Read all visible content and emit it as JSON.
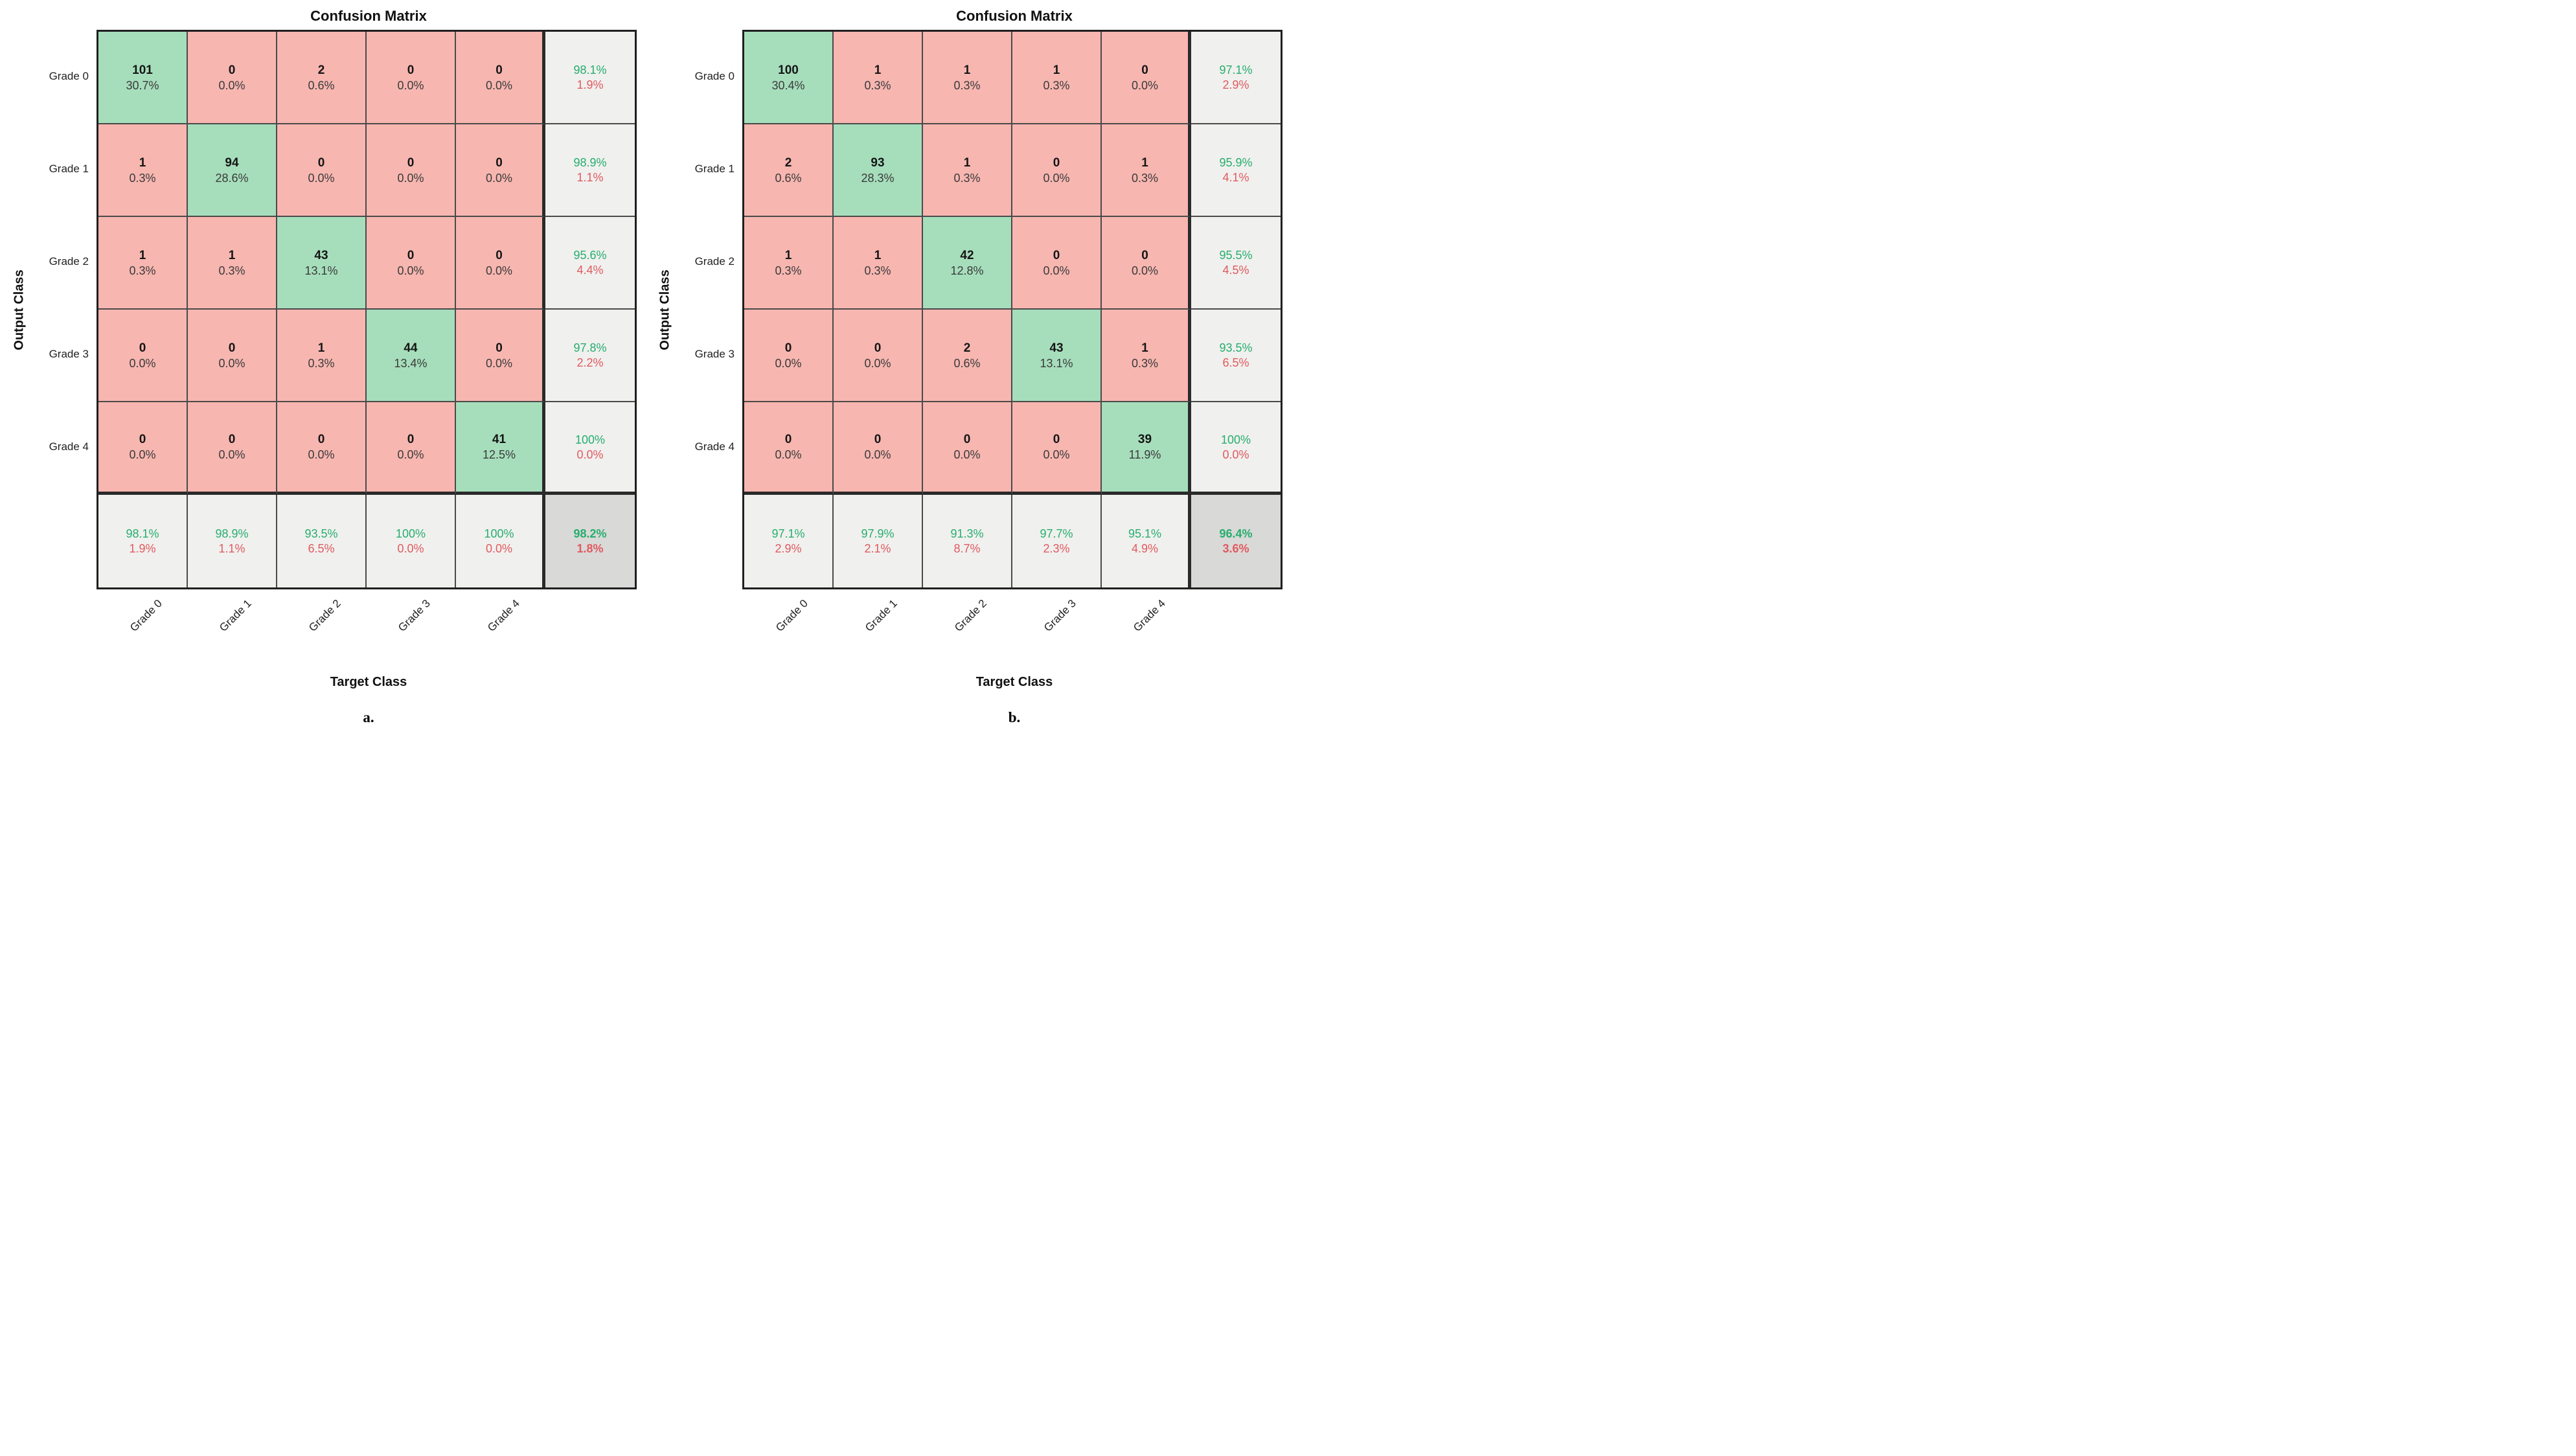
{
  "chart_data": [
    {
      "type": "heatmap",
      "panel_label": "a.",
      "title": "Confusion Matrix",
      "xlabel": "Target Class",
      "ylabel": "Output Class",
      "x_categories": [
        "Grade 0",
        "Grade 1",
        "Grade 2",
        "Grade 3",
        "Grade 4"
      ],
      "y_categories": [
        "Grade 0",
        "Grade 1",
        "Grade 2",
        "Grade 3",
        "Grade 4"
      ],
      "counts": [
        [
          101,
          0,
          2,
          0,
          0
        ],
        [
          1,
          94,
          0,
          0,
          0
        ],
        [
          1,
          1,
          43,
          0,
          0
        ],
        [
          0,
          0,
          1,
          44,
          0
        ],
        [
          0,
          0,
          0,
          0,
          41
        ]
      ],
      "percent_of_total": [
        [
          "30.7%",
          "0.0%",
          "0.6%",
          "0.0%",
          "0.0%"
        ],
        [
          "0.3%",
          "28.6%",
          "0.0%",
          "0.0%",
          "0.0%"
        ],
        [
          "0.3%",
          "0.3%",
          "13.1%",
          "0.0%",
          "0.0%"
        ],
        [
          "0.0%",
          "0.0%",
          "0.3%",
          "13.4%",
          "0.0%"
        ],
        [
          "0.0%",
          "0.0%",
          "0.0%",
          "0.0%",
          "12.5%"
        ]
      ],
      "row_summary_green": [
        "98.1%",
        "98.9%",
        "95.6%",
        "97.8%",
        "100%"
      ],
      "row_summary_red": [
        "1.9%",
        "1.1%",
        "4.4%",
        "2.2%",
        "0.0%"
      ],
      "col_summary_green": [
        "98.1%",
        "98.9%",
        "93.5%",
        "100%",
        "100%"
      ],
      "col_summary_red": [
        "1.9%",
        "1.1%",
        "6.5%",
        "0.0%",
        "0.0%"
      ],
      "overall_green": "98.2%",
      "overall_red": "1.8%"
    },
    {
      "type": "heatmap",
      "panel_label": "b.",
      "title": "Confusion Matrix",
      "xlabel": "Target Class",
      "ylabel": "Output Class",
      "x_categories": [
        "Grade 0",
        "Grade 1",
        "Grade 2",
        "Grade 3",
        "Grade 4"
      ],
      "y_categories": [
        "Grade 0",
        "Grade 1",
        "Grade 2",
        "Grade 3",
        "Grade 4"
      ],
      "counts": [
        [
          100,
          1,
          1,
          1,
          0
        ],
        [
          2,
          93,
          1,
          0,
          1
        ],
        [
          1,
          1,
          42,
          0,
          0
        ],
        [
          0,
          0,
          2,
          43,
          1
        ],
        [
          0,
          0,
          0,
          0,
          39
        ]
      ],
      "percent_of_total": [
        [
          "30.4%",
          "0.3%",
          "0.3%",
          "0.3%",
          "0.0%"
        ],
        [
          "0.6%",
          "28.3%",
          "0.3%",
          "0.0%",
          "0.3%"
        ],
        [
          "0.3%",
          "0.3%",
          "12.8%",
          "0.0%",
          "0.0%"
        ],
        [
          "0.0%",
          "0.0%",
          "0.6%",
          "13.1%",
          "0.3%"
        ],
        [
          "0.0%",
          "0.0%",
          "0.0%",
          "0.0%",
          "11.9%"
        ]
      ],
      "row_summary_green": [
        "97.1%",
        "95.9%",
        "95.5%",
        "93.5%",
        "100%"
      ],
      "row_summary_red": [
        "2.9%",
        "4.1%",
        "4.5%",
        "6.5%",
        "0.0%"
      ],
      "col_summary_green": [
        "97.1%",
        "97.9%",
        "91.3%",
        "97.7%",
        "95.1%"
      ],
      "col_summary_red": [
        "2.9%",
        "2.1%",
        "8.7%",
        "2.3%",
        "4.9%"
      ],
      "overall_green": "96.4%",
      "overall_red": "3.6%"
    }
  ],
  "colors": {
    "diagonal_fill": "#a6debc",
    "off_diagonal_fill": "#f7b6b0",
    "summary_fill": "#f0f0ee",
    "overall_fill": "#d9d9d7",
    "positive_text": "#26ae6e",
    "negative_text": "#e05a60"
  }
}
